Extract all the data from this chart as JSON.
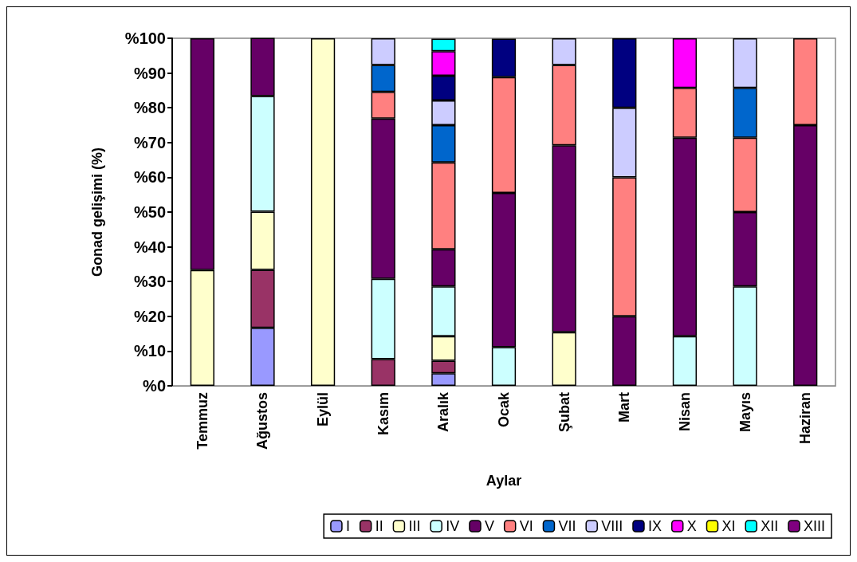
{
  "chart_data": {
    "type": "bar",
    "stacked": true,
    "xlabel": "Aylar",
    "ylabel": "Gonad gelişimi (%)",
    "categories": [
      "Temmuz",
      "Ağustos",
      "Eylül",
      "Kasım",
      "Aralık",
      "Ocak",
      "Şubat",
      "Mart",
      "Nisan",
      "Mayıs",
      "Haziran"
    ],
    "ylim": [
      0,
      100
    ],
    "yticks": [
      {
        "value": 0,
        "label": "%0"
      },
      {
        "value": 10,
        "label": "%10"
      },
      {
        "value": 20,
        "label": "%20"
      },
      {
        "value": 30,
        "label": "%30"
      },
      {
        "value": 40,
        "label": "%40"
      },
      {
        "value": 50,
        "label": "%50"
      },
      {
        "value": 60,
        "label": "%60"
      },
      {
        "value": 70,
        "label": "%70"
      },
      {
        "value": 80,
        "label": "%80"
      },
      {
        "value": 90,
        "label": "%90"
      },
      {
        "value": 100,
        "label": "%100"
      }
    ],
    "grid": false,
    "legend": "bottom right",
    "series": [
      {
        "name": "I",
        "color": "#9999ff",
        "values": [
          null,
          16.7,
          null,
          null,
          3.6,
          null,
          null,
          null,
          null,
          null,
          null
        ]
      },
      {
        "name": "II",
        "color": "#993366",
        "values": [
          null,
          16.7,
          null,
          7.7,
          3.6,
          null,
          null,
          null,
          null,
          null,
          null
        ]
      },
      {
        "name": "III",
        "color": "#ffffcc",
        "values": [
          33.3,
          16.7,
          100,
          null,
          7.1,
          null,
          15.4,
          null,
          null,
          null,
          null
        ]
      },
      {
        "name": "IV",
        "color": "#ccffff",
        "values": [
          null,
          33.3,
          null,
          23.1,
          14.3,
          11.1,
          null,
          null,
          14.3,
          28.6,
          null
        ]
      },
      {
        "name": "V",
        "color": "#660066",
        "values": [
          66.7,
          16.7,
          null,
          46.1,
          10.7,
          44.4,
          53.8,
          20,
          57.1,
          21.4,
          75
        ]
      },
      {
        "name": "VI",
        "color": "#ff8080",
        "values": [
          null,
          null,
          null,
          7.7,
          25,
          33.3,
          23.1,
          40,
          14.3,
          21.4,
          25
        ]
      },
      {
        "name": "VII",
        "color": "#0066cc",
        "values": [
          null,
          null,
          null,
          7.7,
          10.7,
          null,
          null,
          null,
          null,
          14.3,
          null
        ]
      },
      {
        "name": "VIII",
        "color": "#ccccff",
        "values": [
          null,
          null,
          null,
          7.7,
          7.1,
          null,
          7.7,
          20,
          null,
          14.3,
          null
        ]
      },
      {
        "name": "IX",
        "color": "#000080",
        "values": [
          null,
          null,
          null,
          null,
          7.1,
          11.1,
          null,
          20,
          null,
          null,
          null
        ]
      },
      {
        "name": "X",
        "color": "#ff00ff",
        "values": [
          null,
          null,
          null,
          null,
          7.1,
          null,
          null,
          null,
          14.3,
          null,
          null
        ]
      },
      {
        "name": "XI",
        "color": "#ffff00",
        "values": [
          null,
          null,
          null,
          null,
          null,
          null,
          null,
          null,
          null,
          null,
          null
        ]
      },
      {
        "name": "XII",
        "color": "#00ffff",
        "values": [
          null,
          null,
          null,
          null,
          3.6,
          null,
          null,
          null,
          null,
          null,
          null
        ]
      },
      {
        "name": "XIII",
        "color": "#800080",
        "values": [
          null,
          null,
          null,
          null,
          null,
          null,
          null,
          null,
          null,
          null,
          null
        ]
      }
    ]
  }
}
